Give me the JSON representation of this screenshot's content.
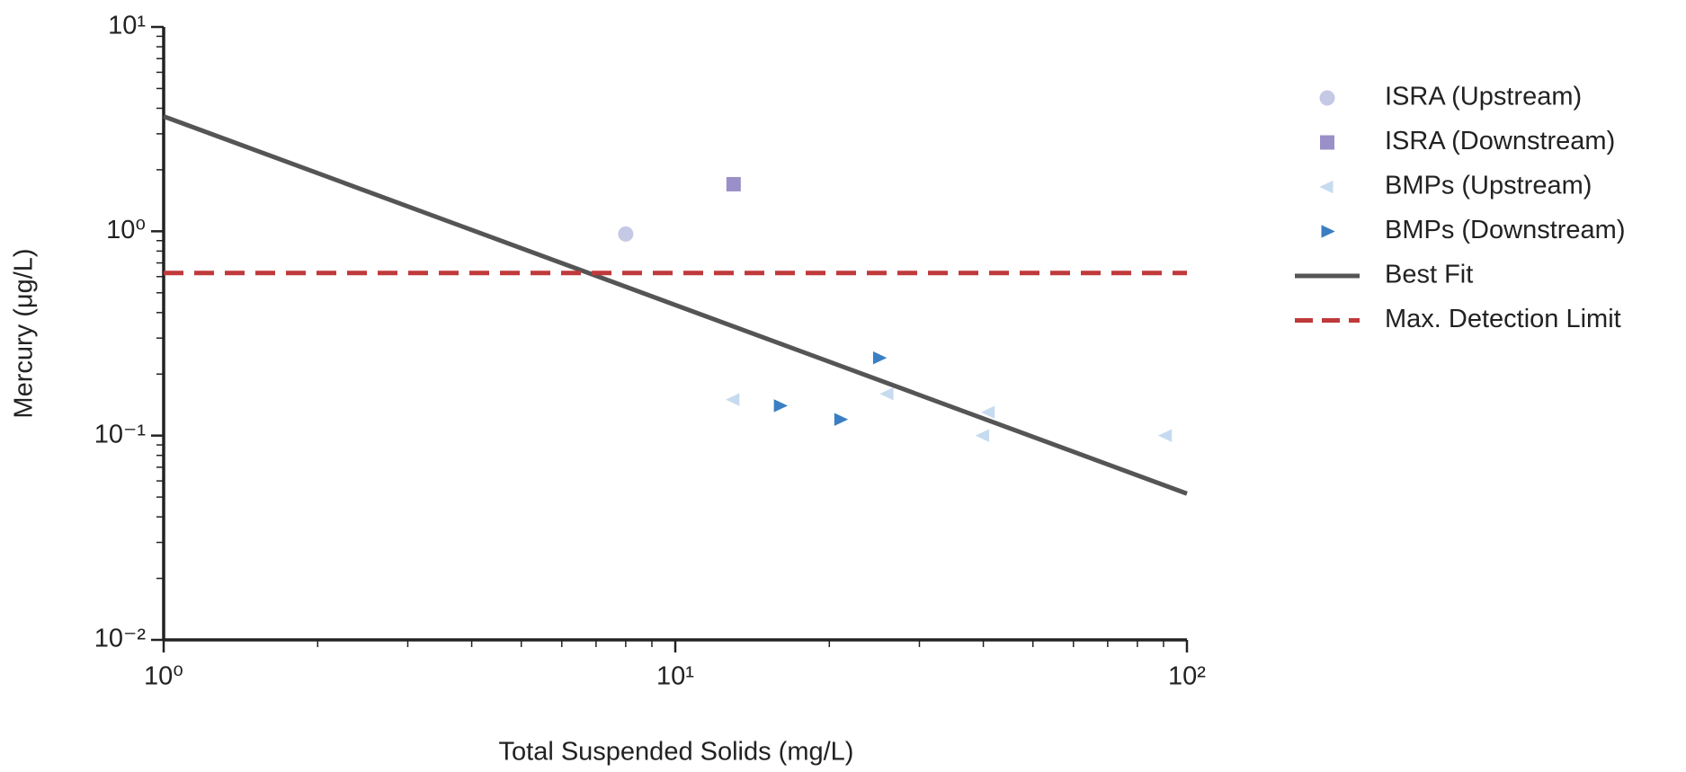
{
  "chart_data": {
    "type": "scatter",
    "xlabel": "Total Suspended Solids (mg/L)",
    "ylabel": "Mercury (μg/L)",
    "xscale": "log",
    "yscale": "log",
    "xlim": [
      1,
      100
    ],
    "ylim": [
      0.01,
      10
    ],
    "xticks": [
      {
        "value": 1,
        "label": "10⁰"
      },
      {
        "value": 10,
        "label": "10¹"
      },
      {
        "value": 100,
        "label": "10²"
      }
    ],
    "yticks": [
      {
        "value": 0.01,
        "label": "10⁻²"
      },
      {
        "value": 0.1,
        "label": "10⁻¹"
      },
      {
        "value": 1,
        "label": "10⁰"
      },
      {
        "value": 10,
        "label": "10¹"
      }
    ],
    "minor_ticks": true,
    "legend": "outside-right",
    "series": [
      {
        "name": "ISRA (Upstream)",
        "color": "#c5c9e6",
        "marker": "circle",
        "x": [
          8
        ],
        "values": [
          0.97
        ]
      },
      {
        "name": "ISRA (Downstream)",
        "color": "#9b8fc8",
        "marker": "square",
        "x": [
          13
        ],
        "values": [
          1.7
        ]
      },
      {
        "name": "BMPs (Upstream)",
        "color": "#c6dbef",
        "marker": "triangle-left",
        "x": [
          13,
          26,
          41,
          40,
          91
        ],
        "values": [
          0.15,
          0.16,
          0.13,
          0.1,
          0.1
        ]
      },
      {
        "name": "BMPs (Downstream)",
        "color": "#3a7fc4",
        "marker": "triangle-right",
        "x": [
          16,
          21,
          25
        ],
        "values": [
          0.14,
          0.12,
          0.24
        ]
      },
      {
        "name": "Best Fit",
        "color": "#555555",
        "marker": "line",
        "style": "solid",
        "x": [
          1,
          100
        ],
        "values": [
          3.65,
          0.052
        ]
      },
      {
        "name": "Max. Detection Limit",
        "color": "#c0393b",
        "marker": "line",
        "style": "dashed",
        "x": [
          1,
          100
        ],
        "values": [
          0.625,
          0.625
        ]
      }
    ]
  }
}
